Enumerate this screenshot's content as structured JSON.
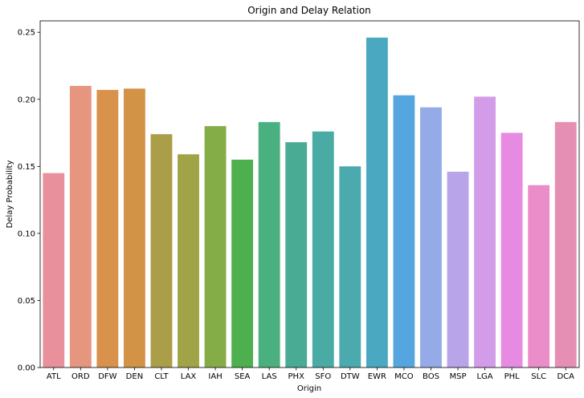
{
  "chart_data": {
    "type": "bar",
    "title": "Origin and Delay Relation",
    "xlabel": "Origin",
    "ylabel": "Delay Probability",
    "categories": [
      "ATL",
      "ORD",
      "DFW",
      "DEN",
      "CLT",
      "LAX",
      "IAH",
      "SEA",
      "LAS",
      "PHX",
      "SFO",
      "DTW",
      "EWR",
      "MCO",
      "BOS",
      "MSP",
      "LGA",
      "PHL",
      "SLC",
      "DCA"
    ],
    "values": [
      0.145,
      0.21,
      0.207,
      0.208,
      0.174,
      0.159,
      0.18,
      0.155,
      0.183,
      0.168,
      0.176,
      0.15,
      0.246,
      0.203,
      0.194,
      0.146,
      0.202,
      0.175,
      0.136,
      0.183
    ],
    "colors": [
      "#e8919c",
      "#e6957e",
      "#d9924c",
      "#d29347",
      "#ab9e48",
      "#a0a446",
      "#84ad48",
      "#4daf4e",
      "#4bb07f",
      "#49ab93",
      "#4aaba4",
      "#4aaaae",
      "#4aa8c1",
      "#55a6de",
      "#94abe7",
      "#b8a4e9",
      "#d39ce8",
      "#e68ae2",
      "#ea8dc9",
      "#e68fb4"
    ],
    "yticks": [
      "0.00",
      "0.05",
      "0.10",
      "0.15",
      "0.20",
      "0.25"
    ],
    "ylim": [
      0,
      0.2585
    ],
    "grid": false,
    "legend": false
  }
}
